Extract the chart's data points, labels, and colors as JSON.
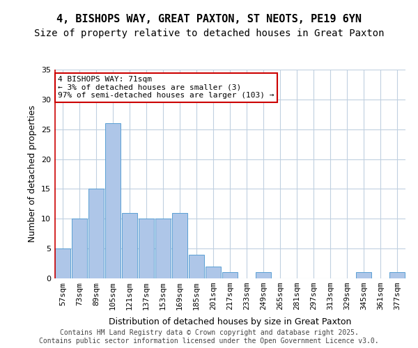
{
  "title_line1": "4, BISHOPS WAY, GREAT PAXTON, ST NEOTS, PE19 6YN",
  "title_line2": "Size of property relative to detached houses in Great Paxton",
  "xlabel": "Distribution of detached houses by size in Great Paxton",
  "ylabel": "Number of detached properties",
  "categories": [
    "57sqm",
    "73sqm",
    "89sqm",
    "105sqm",
    "121sqm",
    "137sqm",
    "153sqm",
    "169sqm",
    "185sqm",
    "201sqm",
    "217sqm",
    "233sqm",
    "249sqm",
    "265sqm",
    "281sqm",
    "297sqm",
    "313sqm",
    "329sqm",
    "345sqm",
    "361sqm",
    "377sqm"
  ],
  "values": [
    5,
    10,
    15,
    26,
    11,
    10,
    10,
    11,
    4,
    2,
    1,
    0,
    1,
    0,
    0,
    0,
    0,
    0,
    1,
    0,
    1
  ],
  "bar_color": "#aec6e8",
  "bar_edge_color": "#5a9fd4",
  "annotation_box_text": "4 BISHOPS WAY: 71sqm\n← 3% of detached houses are smaller (3)\n97% of semi-detached houses are larger (103) →",
  "annotation_box_color": "#ffffff",
  "annotation_box_edge_color": "#cc0000",
  "vline_color": "#cc0000",
  "ylim": [
    0,
    35
  ],
  "yticks": [
    0,
    5,
    10,
    15,
    20,
    25,
    30,
    35
  ],
  "background_color": "#ffffff",
  "grid_color": "#c0d0e0",
  "footer_text": "Contains HM Land Registry data © Crown copyright and database right 2025.\nContains public sector information licensed under the Open Government Licence v3.0.",
  "title_fontsize": 11,
  "subtitle_fontsize": 10,
  "axis_label_fontsize": 9,
  "tick_fontsize": 8,
  "annotation_fontsize": 8,
  "footer_fontsize": 7
}
